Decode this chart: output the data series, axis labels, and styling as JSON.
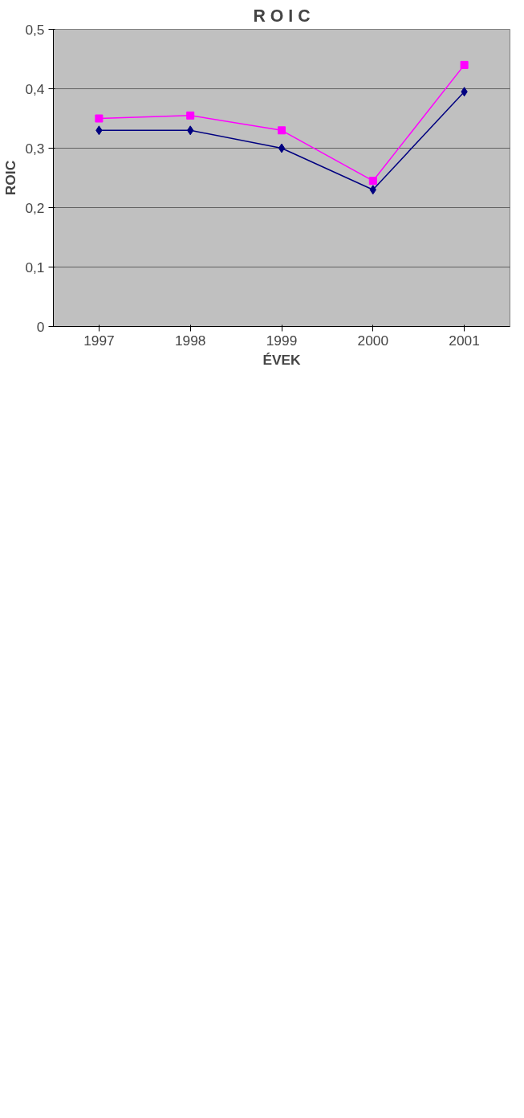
{
  "chart_data": {
    "type": "line",
    "title": "R O I C",
    "xlabel": "ÉVEK",
    "ylabel": "ROIC",
    "categories": [
      "1997",
      "1998",
      "1999",
      "2000",
      "2001"
    ],
    "series": [
      {
        "color": "#ff00ff",
        "marker": "square",
        "values": [
          0.35,
          0.355,
          0.33,
          0.245,
          0.44
        ]
      },
      {
        "color": "#000080",
        "marker": "diamond",
        "values": [
          0.33,
          0.33,
          0.3,
          0.23,
          0.395
        ]
      }
    ],
    "ylim": [
      0,
      0.5
    ],
    "yticks": [
      {
        "value": 0,
        "label": "0"
      },
      {
        "value": 0.1,
        "label": "0,1"
      },
      {
        "value": 0.2,
        "label": "0,2"
      },
      {
        "value": 0.3,
        "label": "0,3"
      },
      {
        "value": 0.4,
        "label": "0,4"
      },
      {
        "value": 0.5,
        "label": "0,5"
      }
    ],
    "grid": "y",
    "line_style": "solid"
  }
}
